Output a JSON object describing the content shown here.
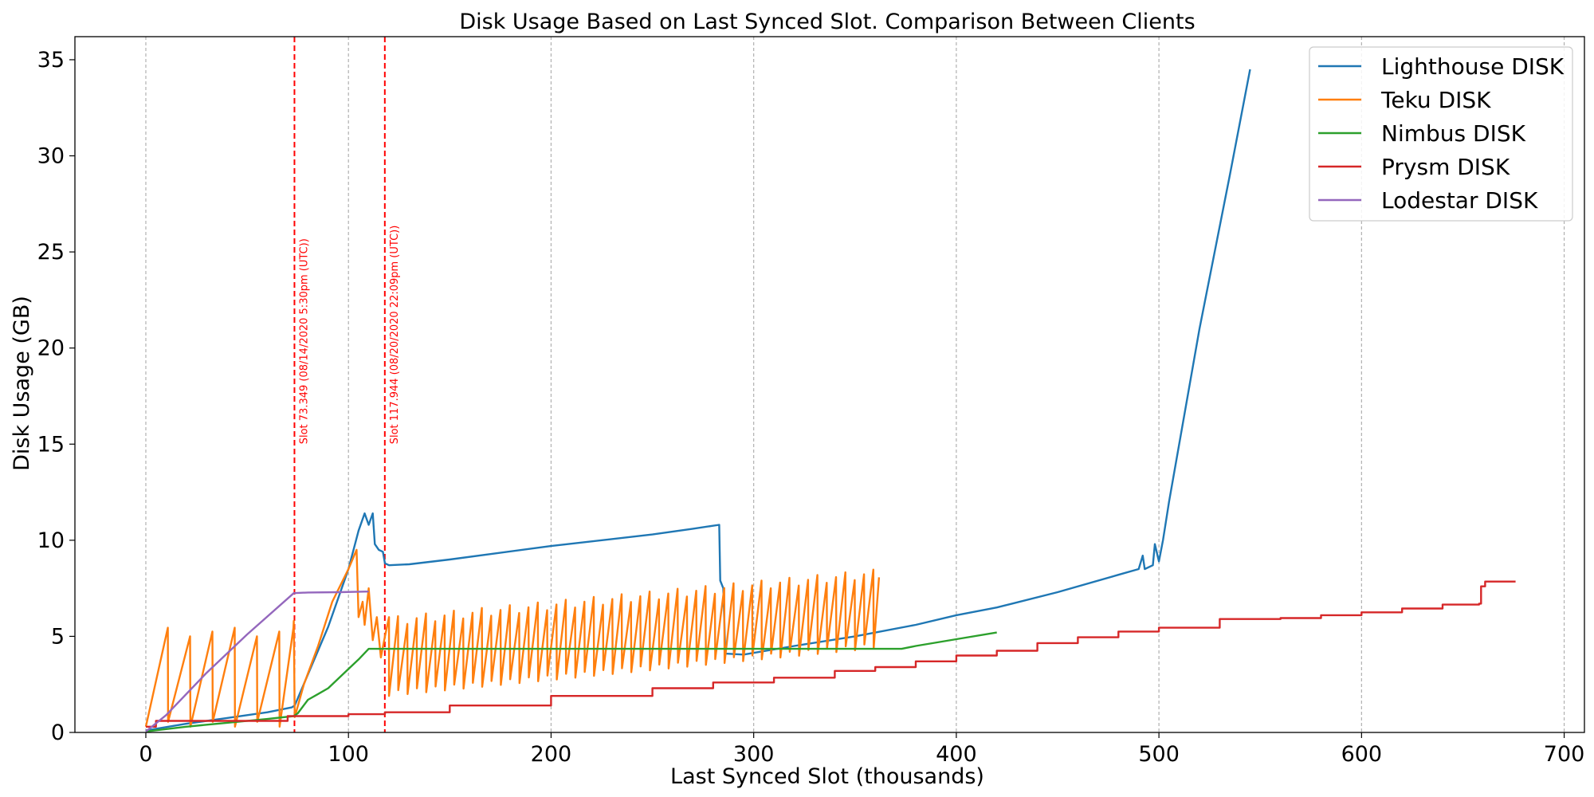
{
  "chart_data": {
    "type": "line",
    "title": "Disk Usage Based on Last Synced Slot. Comparison Between Clients",
    "xlabel": "Last Synced Slot (thousands)",
    "ylabel": "Disk Usage (GB)",
    "xlim": [
      -35,
      710
    ],
    "ylim": [
      0,
      36.2
    ],
    "xticks": [
      0,
      100,
      200,
      300,
      400,
      500,
      600,
      700
    ],
    "yticks": [
      0,
      5,
      10,
      15,
      20,
      25,
      30,
      35
    ],
    "grid": "x-dashed",
    "legend_position": "top-right",
    "annotations": [
      {
        "x": 73.349,
        "label": "Slot 73.349 (08/14/2020 5:30pm (UTC))",
        "color": "#ff0000"
      },
      {
        "x": 117.944,
        "label": "Slot 117.944 (08/20/2020 22:09pm (UTC))",
        "color": "#ff0000"
      }
    ],
    "series": [
      {
        "name": "Lighthouse DISK",
        "color": "#1f77b4",
        "points": [
          [
            0,
            0.1
          ],
          [
            20,
            0.45
          ],
          [
            40,
            0.75
          ],
          [
            60,
            1.05
          ],
          [
            72,
            1.3
          ],
          [
            73.5,
            1.4
          ],
          [
            90,
            5.5
          ],
          [
            100,
            8.5
          ],
          [
            105,
            10.5
          ],
          [
            108,
            11.4
          ],
          [
            110,
            10.8
          ],
          [
            112,
            11.4
          ],
          [
            113,
            9.8
          ],
          [
            115,
            9.5
          ],
          [
            117,
            9.4
          ],
          [
            118,
            8.8
          ],
          [
            120,
            8.7
          ],
          [
            130,
            8.75
          ],
          [
            150,
            9.0
          ],
          [
            200,
            9.7
          ],
          [
            250,
            10.3
          ],
          [
            270,
            10.6
          ],
          [
            283,
            10.8
          ],
          [
            283.5,
            7.9
          ],
          [
            285,
            7.5
          ],
          [
            286,
            4.1
          ],
          [
            295,
            4.05
          ],
          [
            320,
            4.5
          ],
          [
            350,
            5.0
          ],
          [
            380,
            5.6
          ],
          [
            400,
            6.1
          ],
          [
            420,
            6.5
          ],
          [
            450,
            7.3
          ],
          [
            480,
            8.2
          ],
          [
            490,
            8.5
          ],
          [
            492,
            9.2
          ],
          [
            493,
            8.5
          ],
          [
            497,
            8.7
          ],
          [
            498,
            9.8
          ],
          [
            500,
            8.9
          ],
          [
            502,
            10.0
          ],
          [
            505,
            12.0
          ],
          [
            520,
            21.0
          ],
          [
            535,
            29.0
          ],
          [
            545,
            34.5
          ]
        ]
      },
      {
        "name": "Teku DISK",
        "color": "#ff7f0e",
        "sawtooth": true,
        "ramp1": {
          "start": 0,
          "end": 73,
          "period": 11,
          "low": 0.4,
          "high": 5.2
        },
        "ramp2": {
          "start": 120,
          "end": 362,
          "period": 4.6,
          "low_start": 2.0,
          "low_end": 4.5,
          "high_start": 5.8,
          "high_end": 8.3
        },
        "points": [
          [
            73,
            5.8
          ],
          [
            73.5,
            0.8
          ],
          [
            78,
            2.5
          ],
          [
            85,
            4.5
          ],
          [
            92,
            6.8
          ],
          [
            100,
            8.5
          ],
          [
            104,
            9.5
          ],
          [
            105,
            6.0
          ],
          [
            107,
            6.8
          ],
          [
            108,
            5.6
          ],
          [
            110,
            7.5
          ],
          [
            112,
            4.8
          ],
          [
            114,
            6.0
          ],
          [
            116,
            3.9
          ],
          [
            118,
            5.0
          ],
          [
            120,
            6.0
          ]
        ]
      },
      {
        "name": "Nimbus DISK",
        "color": "#2ca02c",
        "points": [
          [
            0,
            0.05
          ],
          [
            20,
            0.3
          ],
          [
            40,
            0.5
          ],
          [
            60,
            0.7
          ],
          [
            73,
            0.85
          ],
          [
            75,
            1.0
          ],
          [
            80,
            1.7
          ],
          [
            85,
            2.0
          ],
          [
            90,
            2.3
          ],
          [
            100,
            3.3
          ],
          [
            105,
            3.8
          ],
          [
            110,
            4.35
          ],
          [
            115,
            4.35
          ],
          [
            200,
            4.35
          ],
          [
            300,
            4.35
          ],
          [
            373,
            4.35
          ],
          [
            380,
            4.5
          ],
          [
            400,
            4.85
          ],
          [
            420,
            5.2
          ]
        ]
      },
      {
        "name": "Prysm DISK",
        "color": "#d62728",
        "stepped": true,
        "points": [
          [
            0,
            0.3
          ],
          [
            5,
            0.6
          ],
          [
            70,
            0.85
          ],
          [
            100,
            0.95
          ],
          [
            118,
            1.05
          ],
          [
            150,
            1.4
          ],
          [
            200,
            1.9
          ],
          [
            250,
            2.3
          ],
          [
            280,
            2.6
          ],
          [
            310,
            2.85
          ],
          [
            340,
            3.2
          ],
          [
            360,
            3.4
          ],
          [
            380,
            3.7
          ],
          [
            400,
            4.0
          ],
          [
            420,
            4.25
          ],
          [
            440,
            4.65
          ],
          [
            460,
            4.95
          ],
          [
            480,
            5.25
          ],
          [
            500,
            5.45
          ],
          [
            530,
            5.9
          ],
          [
            560,
            5.95
          ],
          [
            580,
            6.1
          ],
          [
            600,
            6.25
          ],
          [
            620,
            6.45
          ],
          [
            640,
            6.65
          ],
          [
            658,
            6.7
          ],
          [
            659,
            7.6
          ],
          [
            661,
            7.85
          ],
          [
            676,
            7.85
          ]
        ]
      },
      {
        "name": "Lodestar DISK",
        "color": "#9467bd",
        "points": [
          [
            0,
            0.05
          ],
          [
            10,
            0.9
          ],
          [
            30,
            3.1
          ],
          [
            50,
            5.1
          ],
          [
            73,
            7.25
          ],
          [
            80,
            7.28
          ],
          [
            95,
            7.3
          ],
          [
            110,
            7.33
          ]
        ]
      }
    ]
  }
}
